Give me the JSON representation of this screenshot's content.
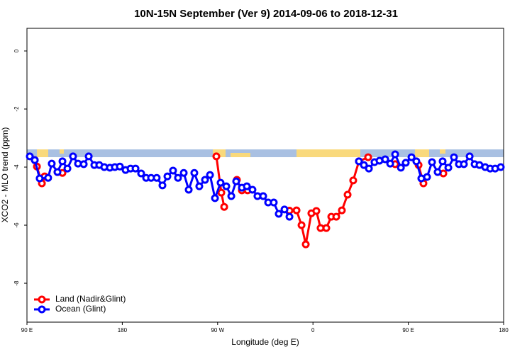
{
  "chart_data": {
    "type": "line",
    "title": "10N-15N September (Ver 9)   2014-09-06 to 2018-12-31",
    "x_label": "Longitude (deg E)",
    "y_label": "XCO2 - MLO trend (ppm)",
    "xlim": [
      90,
      540
    ],
    "ylim": [
      -9.34,
      0.78
    ],
    "xticks": [
      {
        "value": 90,
        "label": "90 E"
      },
      180,
      {
        "value": 270,
        "label": "90 W"
      },
      {
        "value": 360,
        "label": "0"
      },
      {
        "value": 450,
        "label": "90 E"
      },
      {
        "value": 540,
        "label": "180"
      }
    ],
    "yticks": [
      0,
      -2,
      -4,
      -6,
      -8
    ],
    "grid": false,
    "legend": "bottom-left",
    "series": [
      {
        "name": "Land (Nadir&Glint)",
        "color": "#ff0000",
        "x": [
          97.4,
          99.4,
          104.1,
          106.7,
          null,
          118.8,
          123.5,
          null,
          268.8,
          273.5,
          276.2,
          null,
          288.2,
          292.9,
          298.3,
          null,
          337.8,
          344.5,
          349.2,
          353.2,
          358.5,
          363.2,
          367.2,
          372.6,
          377.3,
          382,
          387.3,
          392.7,
          398,
          403.4,
          412.1,
          null,
          437.6,
          null,
          459.7,
          464.3,
          null,
          483.1
        ],
        "values": [
          -3.76,
          -3.98,
          -4.56,
          -4.32,
          null,
          -4.17,
          -4.2,
          null,
          -3.63,
          -4.88,
          -5.37,
          null,
          -4.44,
          -4.8,
          -4.8,
          null,
          -5.5,
          -5.49,
          -6.0,
          -6.66,
          -5.59,
          -5.51,
          -6.1,
          -6.1,
          -5.71,
          -5.71,
          -5.49,
          -4.95,
          -4.46,
          -3.8,
          -3.66,
          null,
          -3.9,
          null,
          -3.93,
          -4.56,
          null,
          -4.22
        ]
      },
      {
        "name": "Ocean (Glint)",
        "color": "#0000ff",
        "x": [
          92.7,
          97.4,
          102,
          110,
          113.4,
          118.8,
          123.5,
          128.2,
          133.5,
          138.2,
          143.6,
          148.3,
          153.6,
          158.3,
          163,
          168.3,
          173,
          177.7,
          183.1,
          187.8,
          192.5,
          197.8,
          202.5,
          207.2,
          212.5,
          217.9,
          222.6,
          227.9,
          232.6,
          238,
          242.7,
          248,
          252.7,
          258.1,
          262.8,
          267.5,
          272.8,
          278.2,
          282.9,
          287.5,
          292.9,
          297.6,
          302.9,
          307.6,
          313,
          317.7,
          323,
          327.7,
          333.1,
          337.8,
          null,
          403.4,
          408.1,
          412.8,
          418.1,
          422.8,
          428.2,
          432.9,
          437.6,
          443,
          447.6,
          453,
          457.6,
          462.3,
          467.7,
          472.4,
          477.7,
          482.4,
          487.8,
          493.1,
          497.8,
          502.5,
          507.9,
          512.6,
          517.2,
          522.6,
          527.3,
          532,
          537.3
        ],
        "values": [
          -3.63,
          -3.76,
          -4.39,
          -4.37,
          -3.88,
          -4.17,
          -3.8,
          -4.05,
          -3.63,
          -3.88,
          -3.9,
          -3.63,
          -3.93,
          -3.93,
          -4.0,
          -4.02,
          -4.0,
          -3.98,
          -4.1,
          -4.05,
          -4.05,
          -4.22,
          -4.37,
          -4.37,
          -4.37,
          -4.63,
          -4.32,
          -4.12,
          -4.37,
          -4.2,
          -4.78,
          -4.2,
          -4.66,
          -4.44,
          -4.27,
          -5.07,
          -4.54,
          -4.66,
          -5.0,
          -4.49,
          -4.71,
          -4.66,
          -4.78,
          -5.0,
          -5.0,
          -5.22,
          -5.22,
          -5.61,
          -5.46,
          -5.71,
          null,
          -3.8,
          -3.93,
          -4.05,
          -3.83,
          -3.78,
          -3.73,
          -3.88,
          -3.56,
          -4.02,
          -3.85,
          -3.66,
          -3.8,
          -4.39,
          -4.34,
          -3.83,
          -4.17,
          -3.8,
          -4.02,
          -3.66,
          -3.9,
          -3.9,
          -3.63,
          -3.9,
          -3.93,
          -4.0,
          -4.05,
          -4.05,
          -4.0
        ]
      }
    ]
  }
}
